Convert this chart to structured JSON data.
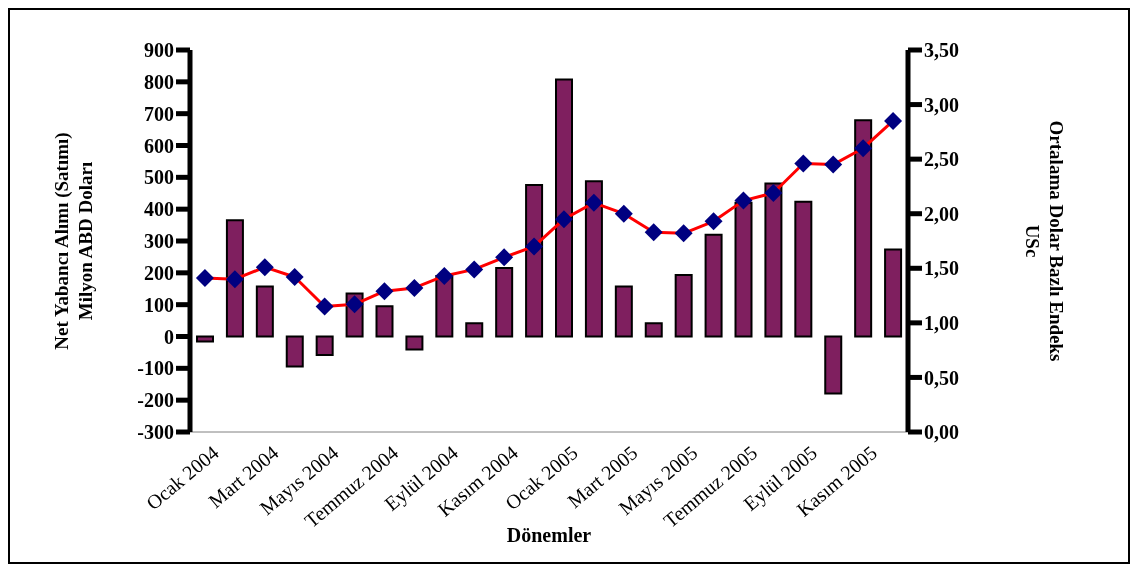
{
  "chart_data": {
    "type": "bar",
    "xlabel": "Dönemler",
    "ylabel": "Net Yabancı Alımı (Satımı)\nMilyon ABD Doları",
    "y2label": "Ortalama Dolar Bazlı Endeks\nUSc",
    "categories": [
      "Ocak 2004",
      null,
      "Mart 2004",
      null,
      "Mayıs 2004",
      null,
      "Temmuz 2004",
      null,
      "Eylül 2004",
      null,
      "Kasım 2004",
      null,
      "Ocak 2005",
      null,
      "Mart 2005",
      null,
      "Mayıs 2005",
      null,
      "Temmuz 2005",
      null,
      "Eylül 2005",
      null,
      "Kasım 2005",
      null
    ],
    "series": [
      {
        "color": "#7f1f5f",
        "values": [
          -16,
          365,
          157,
          -94,
          -58,
          135,
          95,
          -41,
          190,
          42,
          215,
          476,
          807,
          488,
          157,
          42,
          193,
          320,
          420,
          481,
          423,
          -179,
          679,
          273
        ]
      },
      {
        "type": "line",
        "axis": "y2",
        "color": "#ff0000",
        "marker": "diamond",
        "values": [
          1.41,
          1.4,
          1.51,
          1.42,
          1.15,
          1.17,
          1.29,
          1.32,
          1.43,
          1.49,
          1.6,
          1.7,
          1.95,
          2.1,
          2.0,
          1.83,
          1.82,
          1.93,
          2.12,
          2.19,
          2.46,
          2.45,
          2.6,
          2.85
        ]
      }
    ],
    "ylim": [
      -300,
      900
    ],
    "yticks": [
      -300,
      -200,
      -100,
      0,
      100,
      200,
      300,
      400,
      500,
      600,
      700,
      800,
      900
    ],
    "y2lim": [
      0,
      3.5
    ],
    "y2ticks": [
      {
        "value": 0,
        "label": "0,00"
      },
      {
        "value": 0.5,
        "label": "0,50"
      },
      {
        "value": 1,
        "label": "1,00"
      },
      {
        "value": 1.5,
        "label": "1,50"
      },
      {
        "value": 2,
        "label": "2,00"
      },
      {
        "value": 2.5,
        "label": "2,50"
      },
      {
        "value": 3,
        "label": "3,00"
      },
      {
        "value": 3.5,
        "label": "3,50"
      }
    ],
    "grid": false,
    "legend": false
  }
}
